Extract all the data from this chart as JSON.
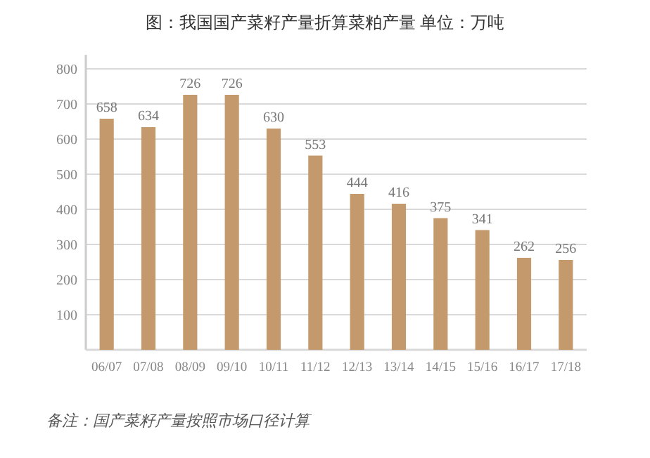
{
  "chart_data": {
    "type": "bar",
    "title": "图：我国国产菜籽产量折算菜粕产量 单位：万吨",
    "categories": [
      "06/07",
      "07/08",
      "08/09",
      "09/10",
      "10/11",
      "11/12",
      "12/13",
      "13/14",
      "14/15",
      "15/16",
      "16/17",
      "17/18"
    ],
    "values": [
      658,
      634,
      726,
      726,
      630,
      553,
      444,
      416,
      375,
      341,
      262,
      256
    ],
    "color": "#c49a6c",
    "ylim": [
      0,
      840
    ],
    "yticks": [
      100,
      200,
      300,
      400,
      500,
      600,
      700,
      800
    ],
    "grid": "y",
    "data_labels": true,
    "annotations": [
      "备注：国产菜籽产量按照市场口径计算"
    ]
  }
}
